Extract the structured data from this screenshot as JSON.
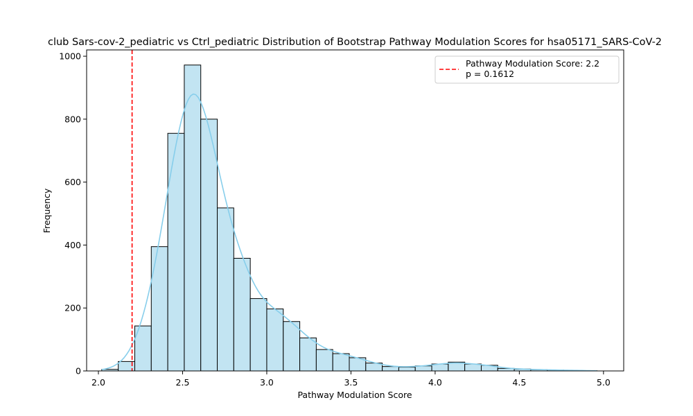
{
  "chart_data": {
    "type": "bar",
    "title": "club Sars-cov-2_pediatric vs Ctrl_pediatric Distribution of Bootstrap Pathway Modulation Scores for hsa05171_SARS-CoV-2",
    "xlabel": "Pathway Modulation Score",
    "ylabel": "Frequency",
    "xlim": [
      1.93,
      5.12
    ],
    "ylim": [
      0,
      1020
    ],
    "xticks": [
      "2.0",
      "2.5",
      "3.0",
      "3.5",
      "4.0",
      "4.5",
      "5.0"
    ],
    "yticks": [
      "0",
      "200",
      "400",
      "600",
      "800",
      "1000"
    ],
    "bin_edges": [
      2.02,
      2.118,
      2.216,
      2.314,
      2.412,
      2.51,
      2.608,
      2.706,
      2.804,
      2.902,
      3.0,
      3.098,
      3.196,
      3.294,
      3.392,
      3.49,
      3.588,
      3.686,
      3.784,
      3.882,
      3.98,
      4.078,
      4.176,
      4.274,
      4.372,
      4.47,
      4.568,
      4.666,
      4.764,
      4.862,
      4.96
    ],
    "counts": [
      5,
      30,
      143,
      395,
      755,
      972,
      800,
      518,
      358,
      230,
      197,
      157,
      105,
      68,
      55,
      42,
      25,
      14,
      12,
      16,
      22,
      28,
      22,
      18,
      8,
      6,
      4,
      3,
      2,
      1
    ],
    "bar_color": "#c2e4f2",
    "kde_color": "#87ceeb",
    "threshold": {
      "value": 2.2,
      "color": "#ff0000",
      "label_line1": "Pathway Modulation Score: 2.2",
      "label_line2": "p = 0.1612"
    },
    "legend_position": "top-right"
  }
}
